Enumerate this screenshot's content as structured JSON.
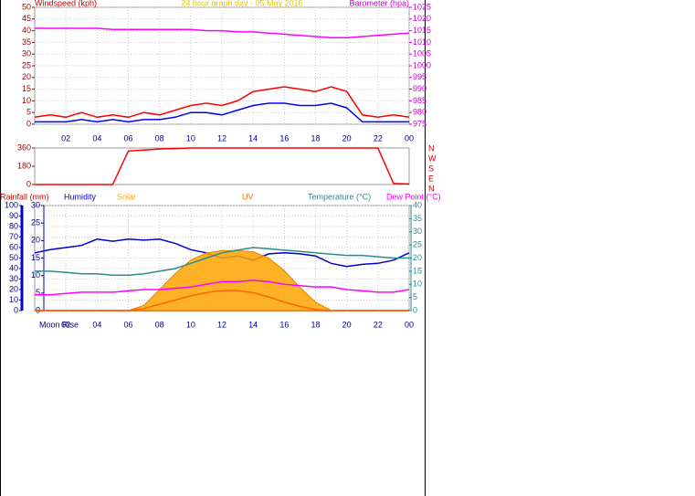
{
  "chart_data": [
    {
      "type": "line",
      "title": "24 hour graph day - 05 May 2016",
      "ylabel": "Windspeed (kph)",
      "y2label": "Barometer (hpa)",
      "x": [
        0,
        1,
        2,
        3,
        4,
        5,
        6,
        7,
        8,
        9,
        10,
        11,
        12,
        13,
        14,
        15,
        16,
        17,
        18,
        19,
        20,
        21,
        22,
        23,
        24
      ],
      "xlim": [
        0,
        24
      ],
      "xticks": [
        {
          "value": 2,
          "label": "02"
        },
        {
          "value": 4,
          "label": "04"
        },
        {
          "value": 6,
          "label": "06"
        },
        {
          "value": 8,
          "label": "08"
        },
        10,
        12,
        14,
        16,
        18,
        20,
        22,
        {
          "value": 24,
          "label": "00"
        }
      ],
      "ylim": [
        0,
        50
      ],
      "yticks": [
        0,
        5,
        10,
        15,
        20,
        25,
        30,
        35,
        40,
        45,
        50
      ],
      "y2lim": [
        975,
        1025
      ],
      "y2ticks": [
        975,
        980,
        985,
        990,
        995,
        1000,
        1005,
        1010,
        1015,
        1020,
        1025
      ],
      "grid": true,
      "series": [
        {
          "color": "#ff0000",
          "values": [
            3,
            4,
            3,
            5,
            3,
            4,
            3,
            5,
            4,
            6,
            8,
            9,
            8,
            10,
            14,
            15,
            16,
            15,
            14,
            16,
            14,
            4,
            3,
            4,
            3
          ]
        },
        {
          "color": "#0000ff",
          "values": [
            1,
            1,
            1,
            2,
            1,
            2,
            1,
            2,
            2,
            3,
            5,
            5,
            4,
            6,
            8,
            9,
            9,
            8,
            8,
            9,
            7,
            1,
            1,
            1,
            1
          ]
        },
        {
          "color": "#ff00ff",
          "axis": "y2",
          "values": [
            1016,
            1016,
            1016,
            1016,
            1016,
            1015.5,
            1015.5,
            1015.5,
            1015.5,
            1015.5,
            1015.5,
            1015,
            1015,
            1014.5,
            1014.5,
            1014,
            1013.5,
            1013,
            1012.5,
            1012,
            1012,
            1012.5,
            1013,
            1013.5,
            1014
          ]
        }
      ]
    },
    {
      "type": "line",
      "x": [
        0,
        1,
        2,
        3,
        4,
        5,
        6,
        7,
        8,
        9,
        10,
        11,
        12,
        13,
        14,
        15,
        16,
        17,
        18,
        19,
        20,
        21,
        22,
        23,
        24
      ],
      "xlim": [
        0,
        24
      ],
      "ylim": [
        0,
        360
      ],
      "yticks": [
        0,
        180,
        360
      ],
      "compass": [
        "N",
        "W",
        "S",
        "E",
        "N"
      ],
      "series": [
        {
          "color": "#ff0000",
          "values": [
            0,
            0,
            0,
            0,
            0,
            0,
            330,
            340,
            350,
            355,
            360,
            360,
            360,
            360,
            360,
            360,
            360,
            360,
            360,
            360,
            360,
            360,
            360,
            10,
            5
          ]
        }
      ]
    },
    {
      "type": "line",
      "annotation": "Moon Rise",
      "x": [
        0,
        1,
        2,
        3,
        4,
        5,
        6,
        7,
        8,
        9,
        10,
        11,
        12,
        13,
        14,
        15,
        16,
        17,
        18,
        19,
        20,
        21,
        22,
        23,
        24
      ],
      "xlim": [
        0,
        24
      ],
      "xticks": [
        {
          "value": 2,
          "label": "02"
        },
        {
          "value": 4,
          "label": "04"
        },
        {
          "value": 6,
          "label": "06"
        },
        {
          "value": 8,
          "label": "08"
        },
        10,
        12,
        14,
        16,
        18,
        20,
        22,
        {
          "value": 24,
          "label": "00"
        }
      ],
      "ylim": [
        0,
        100
      ],
      "yticks": [
        0,
        10,
        20,
        30,
        40,
        50,
        60,
        70,
        80,
        90,
        100
      ],
      "y3lim": [
        0,
        30
      ],
      "y3ticks": [
        0,
        5,
        10,
        15,
        20,
        25,
        30
      ],
      "y2lim": [
        0,
        40
      ],
      "y2ticks": [
        0,
        5,
        10,
        15,
        20,
        25,
        30,
        35,
        40
      ],
      "grid": true,
      "series": [
        {
          "name": "Rainfall (mm)",
          "color": "#cc0000",
          "axis": "y3",
          "values": [
            0,
            0,
            0,
            0,
            0,
            0,
            0,
            0,
            0,
            0,
            0,
            0,
            0,
            0,
            0,
            0,
            0,
            0,
            0,
            0,
            0,
            0,
            0,
            0,
            0
          ]
        },
        {
          "name": "Humidity",
          "color": "#0000cc",
          "values": [
            55,
            58,
            60,
            62,
            68,
            66,
            68,
            67,
            68,
            64,
            58,
            55,
            50,
            52,
            48,
            54,
            55,
            54,
            52,
            45,
            42,
            44,
            45,
            48,
            55
          ]
        },
        {
          "name": "Solar",
          "color": "#ffa500",
          "area": true,
          "values": [
            0,
            0,
            0,
            0,
            0,
            0,
            0,
            5,
            20,
            35,
            48,
            55,
            57,
            57,
            56,
            50,
            38,
            22,
            8,
            0,
            0,
            0,
            0,
            0,
            0
          ]
        },
        {
          "name": "UV",
          "color": "#ff6600",
          "values": [
            0,
            0,
            0,
            0,
            0,
            0,
            0,
            2,
            6,
            10,
            14,
            17,
            19,
            19,
            17,
            13,
            8,
            4,
            1,
            0,
            0,
            0,
            0,
            0,
            0
          ]
        },
        {
          "name": "Temperature (°C)",
          "color": "#2e8b8b",
          "axis": "y2",
          "values": [
            15,
            15,
            14.5,
            14,
            14,
            13.5,
            13.5,
            14,
            15,
            16,
            18,
            20,
            22,
            23,
            24,
            23.5,
            23,
            22.5,
            22,
            21.5,
            21,
            21,
            20.5,
            20,
            20
          ]
        },
        {
          "name": "Dew Point (°C)",
          "color": "#ff00ff",
          "axis": "y2",
          "values": [
            6,
            6,
            6.5,
            7,
            7,
            7,
            7.5,
            8,
            8,
            8.5,
            9,
            10,
            11,
            11,
            11.5,
            11,
            10,
            9.5,
            9,
            9,
            8,
            7.5,
            7,
            7,
            8
          ]
        }
      ]
    }
  ]
}
